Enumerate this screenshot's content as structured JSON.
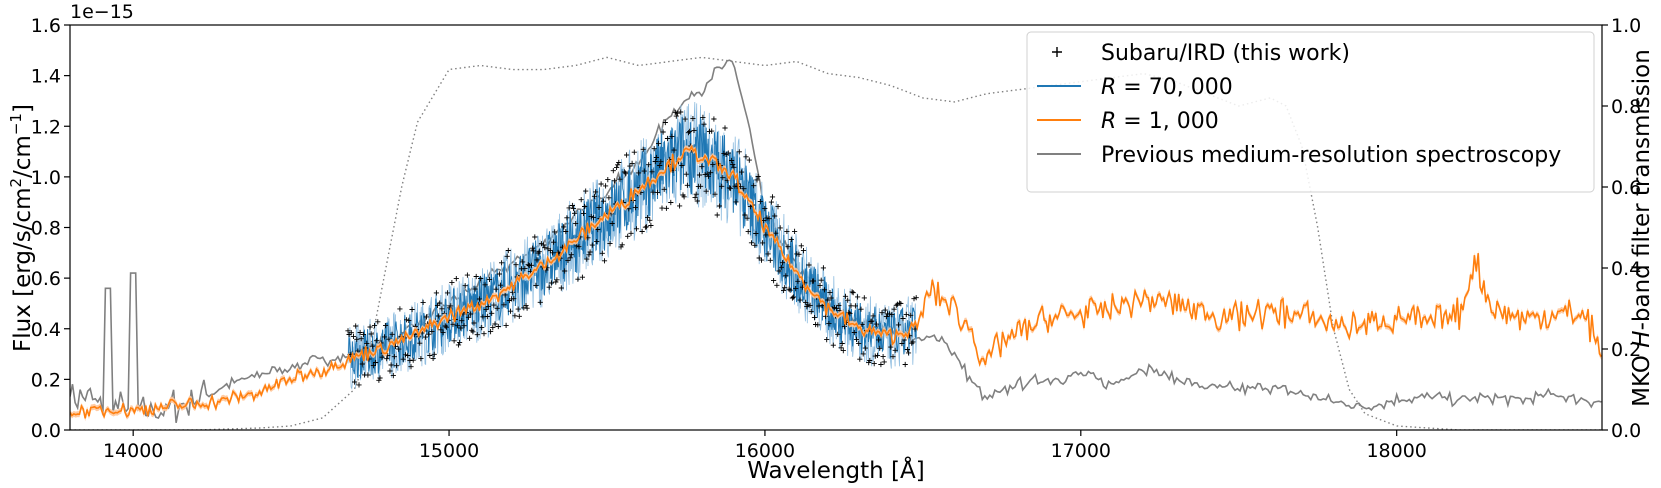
{
  "chart_data": {
    "type": "line",
    "title": "",
    "xlabel": "Wavelength [Å]",
    "ylabel_left": "Flux [erg/s/cm²/cm⁻¹]",
    "ylabel_left_parts": {
      "prefix": "Flux [erg/s/cm",
      "sup1": "2",
      "mid": "/cm",
      "sup2": "−1",
      "suffix": "]"
    },
    "ylabel_right": "MKO H-band filter transmission",
    "ylabel_right_parts": {
      "pre": "MKO ",
      "italic": "H",
      "post": "-band filter transmission"
    },
    "y_offset_label": "1e−15",
    "xlim": [
      13800,
      18650
    ],
    "ylim_left": [
      0,
      1.6
    ],
    "ylim_right": [
      0,
      1.0
    ],
    "x_ticks": [
      14000,
      15000,
      16000,
      17000,
      18000
    ],
    "x_tick_labels": [
      "14000",
      "15000",
      "16000",
      "17000",
      "18000"
    ],
    "y_left_ticks": [
      0,
      0.2,
      0.4,
      0.6,
      0.8,
      1.0,
      1.2,
      1.4,
      1.6
    ],
    "y_left_tick_labels": [
      "0.0",
      "0.2",
      "0.4",
      "0.6",
      "0.8",
      "1.0",
      "1.2",
      "1.4",
      "1.6"
    ],
    "y_right_ticks": [
      0,
      0.2,
      0.4,
      0.6,
      0.8,
      1.0
    ],
    "y_right_tick_labels": [
      "0.0",
      "0.2",
      "0.4",
      "0.6",
      "0.8",
      "1.0"
    ],
    "legend_position": "upper-right",
    "legend": [
      {
        "key": "ird",
        "label": "Subaru/IRD (this work)",
        "marker": "plus",
        "color": "#000000"
      },
      {
        "key": "r70k",
        "label": "R = 70, 000",
        "label_var": "R",
        "label_rest": " = 70, 000",
        "marker": "line",
        "color": "#1f77b4"
      },
      {
        "key": "r1k",
        "label": "R = 1, 000",
        "label_var": "R",
        "label_rest": " = 1, 000",
        "marker": "line",
        "color": "#ff7f0e"
      },
      {
        "key": "prev",
        "label": "Previous medium-resolution spectroscopy",
        "marker": "line",
        "color": "#808080"
      }
    ],
    "colors": {
      "ird": "#000000",
      "r70k": "#1f77b4",
      "r70k_light": "#8fbde0",
      "r1k": "#ff7f0e",
      "r1k_band": "#ffc79a",
      "prev": "#808080",
      "filter": "#808080"
    },
    "series": [
      {
        "name": "R = 1,000 (envelope)",
        "axis": "left",
        "x": [
          13800,
          13900,
          14000,
          14100,
          14200,
          14300,
          14400,
          14500,
          14600,
          14680,
          14800,
          14900,
          15000,
          15100,
          15200,
          15300,
          15400,
          15500,
          15600,
          15700,
          15750,
          15800,
          15850,
          15900,
          15950,
          16000,
          16100,
          16200,
          16300,
          16400,
          16480,
          16520,
          16560,
          16600,
          16650,
          16700,
          16750,
          16800,
          16900,
          17000,
          17100,
          17200,
          17300,
          17400,
          17500,
          17600,
          17700,
          17800,
          17900,
          18000,
          18100,
          18200,
          18250,
          18300,
          18400,
          18500,
          18600,
          18650
        ],
        "y": [
          0.07,
          0.08,
          0.08,
          0.09,
          0.1,
          0.12,
          0.15,
          0.2,
          0.24,
          0.28,
          0.33,
          0.38,
          0.45,
          0.5,
          0.57,
          0.65,
          0.75,
          0.85,
          0.95,
          1.05,
          1.1,
          1.08,
          1.04,
          1.0,
          0.9,
          0.8,
          0.62,
          0.48,
          0.4,
          0.37,
          0.4,
          0.55,
          0.52,
          0.47,
          0.4,
          0.27,
          0.35,
          0.38,
          0.44,
          0.46,
          0.48,
          0.52,
          0.5,
          0.46,
          0.45,
          0.47,
          0.45,
          0.42,
          0.41,
          0.45,
          0.42,
          0.46,
          0.67,
          0.48,
          0.44,
          0.46,
          0.45,
          0.3
        ]
      },
      {
        "name": "Previous medium-resolution spectroscopy (envelope)",
        "axis": "left",
        "x": [
          13800,
          13900,
          14000,
          14100,
          14200,
          14300,
          14400,
          14500,
          14600,
          14700,
          14800,
          14900,
          15000,
          15100,
          15200,
          15300,
          15400,
          15500,
          15600,
          15700,
          15750,
          15800,
          15850,
          15900,
          15950,
          16000,
          16100,
          16200,
          16300,
          16400,
          16500,
          16550,
          16600,
          16650,
          16700,
          16800,
          16900,
          17000,
          17100,
          17200,
          17300,
          17400,
          17500,
          17600,
          17700,
          17800,
          17900,
          18000,
          18100,
          18200,
          18300,
          18400,
          18500,
          18600,
          18650
        ],
        "y": [
          0.15,
          0.1,
          0.08,
          0.08,
          0.12,
          0.18,
          0.22,
          0.25,
          0.28,
          0.29,
          0.35,
          0.42,
          0.5,
          0.58,
          0.66,
          0.74,
          0.84,
          0.95,
          1.05,
          1.25,
          1.3,
          1.35,
          1.42,
          1.45,
          1.2,
          0.85,
          0.65,
          0.5,
          0.42,
          0.4,
          0.35,
          0.38,
          0.3,
          0.2,
          0.12,
          0.18,
          0.2,
          0.22,
          0.18,
          0.25,
          0.2,
          0.17,
          0.16,
          0.17,
          0.14,
          0.11,
          0.09,
          0.12,
          0.13,
          0.12,
          0.13,
          0.12,
          0.14,
          0.12,
          0.11
        ]
      },
      {
        "name": "MKO H-band filter transmission",
        "axis": "right",
        "x": [
          13800,
          14000,
          14200,
          14400,
          14500,
          14600,
          14700,
          14750,
          14800,
          14850,
          14900,
          15000,
          15100,
          15200,
          15300,
          15400,
          15500,
          15600,
          15700,
          15800,
          15900,
          16000,
          16100,
          16200,
          16300,
          16400,
          16500,
          16600,
          16700,
          16800,
          16900,
          17000,
          17100,
          17200,
          17300,
          17400,
          17500,
          17600,
          17650,
          17700,
          17750,
          17800,
          17850,
          17900,
          18000,
          18200,
          18650
        ],
        "y": [
          0.0,
          0.0,
          0.0,
          0.005,
          0.01,
          0.03,
          0.1,
          0.2,
          0.4,
          0.6,
          0.76,
          0.89,
          0.9,
          0.89,
          0.89,
          0.9,
          0.92,
          0.9,
          0.91,
          0.92,
          0.91,
          0.9,
          0.91,
          0.88,
          0.87,
          0.85,
          0.82,
          0.81,
          0.83,
          0.84,
          0.85,
          0.86,
          0.87,
          0.88,
          0.86,
          0.83,
          0.8,
          0.82,
          0.8,
          0.7,
          0.5,
          0.25,
          0.1,
          0.04,
          0.01,
          0.0,
          0.0
        ]
      }
    ],
    "ird_coverage_x": [
      14680,
      16480
    ]
  }
}
